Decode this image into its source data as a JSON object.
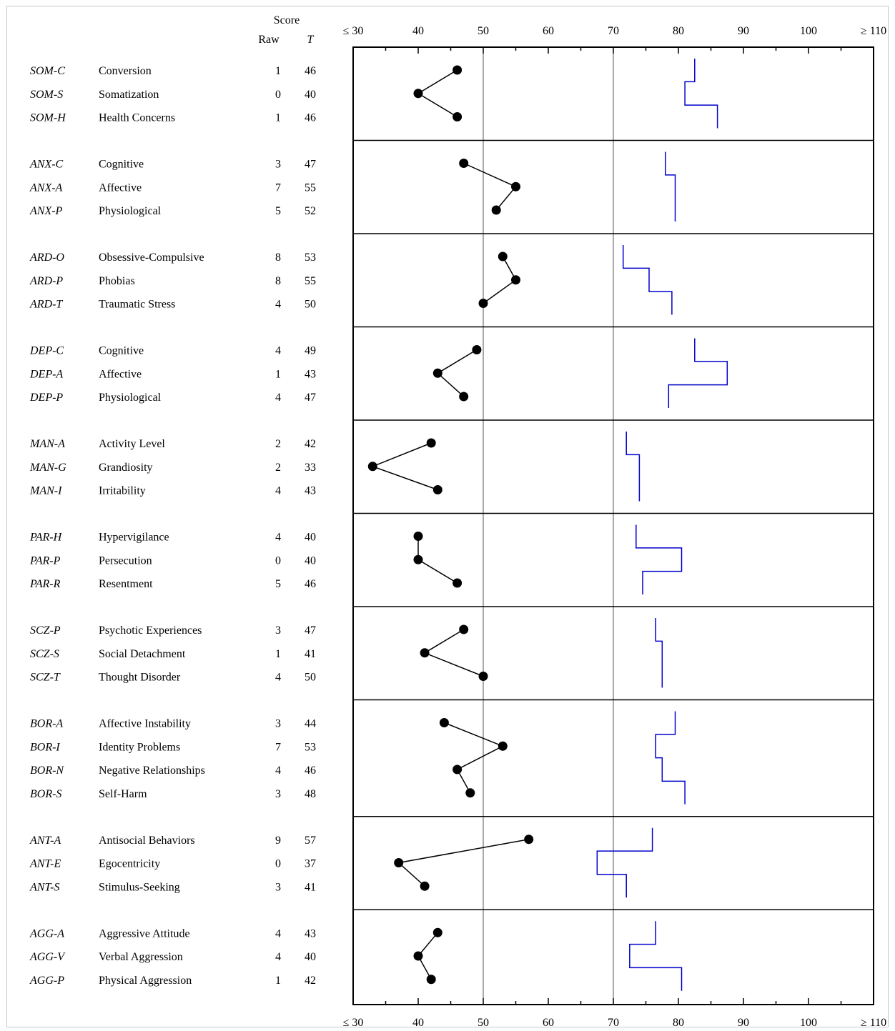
{
  "header": {
    "score_label": "Score",
    "raw_label": "Raw",
    "t_label": "T"
  },
  "chart_data": {
    "type": "line",
    "title": "",
    "x_axis": {
      "range": [
        30,
        110
      ],
      "tick_labels": [
        "≤ 30",
        "40",
        "50",
        "60",
        "70",
        "80",
        "90",
        "100",
        "≥ 110"
      ],
      "tick_values": [
        30,
        40,
        50,
        60,
        70,
        80,
        90,
        100,
        110
      ],
      "reference_lines": [
        50,
        70
      ]
    },
    "colors": {
      "t_score_line": "#000000",
      "comparison_line": "#0000cc"
    },
    "groups": [
      {
        "rows": [
          {
            "abbr": "SOM-C",
            "label": "Conversion",
            "raw": "1",
            "t": 46,
            "ref": 82.5
          },
          {
            "abbr": "SOM-S",
            "label": "Somatization",
            "raw": "0",
            "t": 40,
            "ref": 81
          },
          {
            "abbr": "SOM-H",
            "label": "Health Concerns",
            "raw": "1",
            "t": 46,
            "ref": 86
          }
        ]
      },
      {
        "rows": [
          {
            "abbr": "ANX-C",
            "label": "Cognitive",
            "raw": "3",
            "t": 47,
            "ref": 78
          },
          {
            "abbr": "ANX-A",
            "label": "Affective",
            "raw": "7",
            "t": 55,
            "ref": 79.5
          },
          {
            "abbr": "ANX-P",
            "label": "Physiological",
            "raw": "5",
            "t": 52,
            "ref": 79.5
          }
        ]
      },
      {
        "rows": [
          {
            "abbr": "ARD-O",
            "label": "Obsessive-Compulsive",
            "raw": "8",
            "t": 53,
            "ref": 71.5
          },
          {
            "abbr": "ARD-P",
            "label": "Phobias",
            "raw": "8",
            "t": 55,
            "ref": 75.5
          },
          {
            "abbr": "ARD-T",
            "label": "Traumatic Stress",
            "raw": "4",
            "t": 50,
            "ref": 79
          }
        ]
      },
      {
        "rows": [
          {
            "abbr": "DEP-C",
            "label": "Cognitive",
            "raw": "4",
            "t": 49,
            "ref": 82.5
          },
          {
            "abbr": "DEP-A",
            "label": "Affective",
            "raw": "1",
            "t": 43,
            "ref": 87.5
          },
          {
            "abbr": "DEP-P",
            "label": "Physiological",
            "raw": "4",
            "t": 47,
            "ref": 78.5
          }
        ]
      },
      {
        "rows": [
          {
            "abbr": "MAN-A",
            "label": "Activity Level",
            "raw": "2",
            "t": 42,
            "ref": 72
          },
          {
            "abbr": "MAN-G",
            "label": "Grandiosity",
            "raw": "2",
            "t": 33,
            "ref": 74
          },
          {
            "abbr": "MAN-I",
            "label": "Irritability",
            "raw": "4",
            "t": 43,
            "ref": 74
          }
        ]
      },
      {
        "rows": [
          {
            "abbr": "PAR-H",
            "label": "Hypervigilance",
            "raw": "4",
            "t": 40,
            "ref": 73.5
          },
          {
            "abbr": "PAR-P",
            "label": "Persecution",
            "raw": "0",
            "t": 40,
            "ref": 80.5
          },
          {
            "abbr": "PAR-R",
            "label": "Resentment",
            "raw": "5",
            "t": 46,
            "ref": 74.5
          }
        ]
      },
      {
        "rows": [
          {
            "abbr": "SCZ-P",
            "label": "Psychotic Experiences",
            "raw": "3",
            "t": 47,
            "ref": 76.5
          },
          {
            "abbr": "SCZ-S",
            "label": "Social Detachment",
            "raw": "1",
            "t": 41,
            "ref": 77.5
          },
          {
            "abbr": "SCZ-T",
            "label": "Thought Disorder",
            "raw": "4",
            "t": 50,
            "ref": 77.5
          }
        ]
      },
      {
        "rows": [
          {
            "abbr": "BOR-A",
            "label": "Affective Instability",
            "raw": "3",
            "t": 44,
            "ref": 79.5
          },
          {
            "abbr": "BOR-I",
            "label": "Identity Problems",
            "raw": "7",
            "t": 53,
            "ref": 76.5
          },
          {
            "abbr": "BOR-N",
            "label": "Negative Relationships",
            "raw": "4",
            "t": 46,
            "ref": 77.5
          },
          {
            "abbr": "BOR-S",
            "label": "Self-Harm",
            "raw": "3",
            "t": 48,
            "ref": 81
          }
        ]
      },
      {
        "rows": [
          {
            "abbr": "ANT-A",
            "label": "Antisocial Behaviors",
            "raw": "9",
            "t": 57,
            "ref": 76
          },
          {
            "abbr": "ANT-E",
            "label": "Egocentricity",
            "raw": "0",
            "t": 37,
            "ref": 67.5
          },
          {
            "abbr": "ANT-S",
            "label": "Stimulus-Seeking",
            "raw": "3",
            "t": 41,
            "ref": 72
          }
        ]
      },
      {
        "rows": [
          {
            "abbr": "AGG-A",
            "label": "Aggressive Attitude",
            "raw": "4",
            "t": 43,
            "ref": 76.5
          },
          {
            "abbr": "AGG-V",
            "label": "Verbal Aggression",
            "raw": "4",
            "t": 40,
            "ref": 72.5
          },
          {
            "abbr": "AGG-P",
            "label": "Physical Aggression",
            "raw": "1",
            "t": 42,
            "ref": 80.5
          }
        ]
      }
    ]
  }
}
